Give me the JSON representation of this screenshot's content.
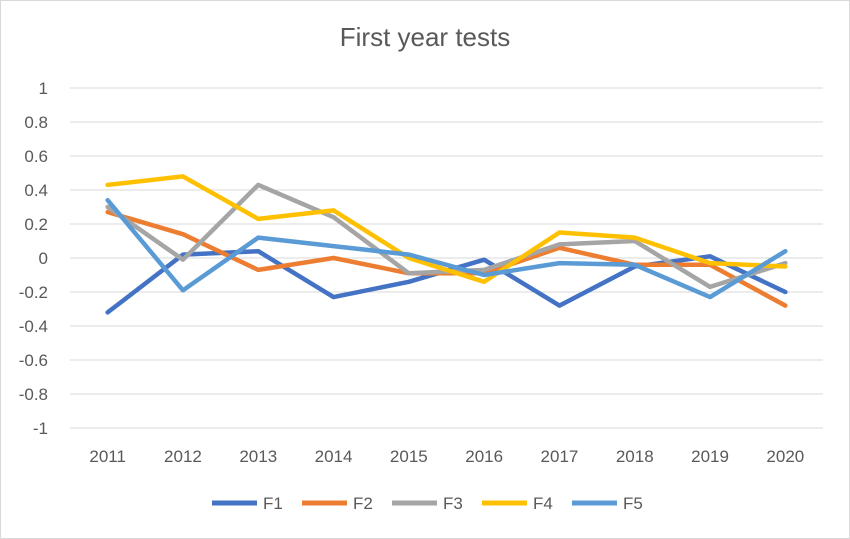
{
  "chart_data": {
    "type": "line",
    "title": "First year tests",
    "xlabel": "",
    "ylabel": "",
    "categories": [
      "2011",
      "2012",
      "2013",
      "2014",
      "2015",
      "2016",
      "2017",
      "2018",
      "2019",
      "2020"
    ],
    "ylim": [
      -1,
      1
    ],
    "yticks": [
      "1",
      "0.8",
      "0.6",
      "0.4",
      "0.2",
      "0",
      "-0.2",
      "-0.4",
      "-0.6",
      "-0.8",
      "-1"
    ],
    "grid": true,
    "legend": "bottom",
    "series": [
      {
        "name": "F1",
        "color": "#4472C4",
        "values": [
          -0.32,
          0.02,
          0.04,
          -0.23,
          -0.14,
          -0.01,
          -0.28,
          -0.05,
          0.01,
          -0.2
        ]
      },
      {
        "name": "F2",
        "color": "#ED7D31",
        "values": [
          0.27,
          0.14,
          -0.07,
          0.0,
          -0.09,
          -0.09,
          0.06,
          -0.04,
          -0.04,
          -0.28
        ]
      },
      {
        "name": "F3",
        "color": "#A5A5A5",
        "values": [
          0.3,
          -0.01,
          0.43,
          0.24,
          -0.09,
          -0.07,
          0.08,
          0.1,
          -0.17,
          -0.03
        ]
      },
      {
        "name": "F4",
        "color": "#FFC000",
        "values": [
          0.43,
          0.48,
          0.23,
          0.28,
          0.0,
          -0.14,
          0.15,
          0.12,
          -0.03,
          -0.05
        ]
      },
      {
        "name": "F5",
        "color": "#5B9BD5",
        "values": [
          0.34,
          -0.19,
          0.12,
          0.07,
          0.02,
          -0.1,
          -0.03,
          -0.04,
          -0.23,
          0.04
        ]
      }
    ]
  }
}
